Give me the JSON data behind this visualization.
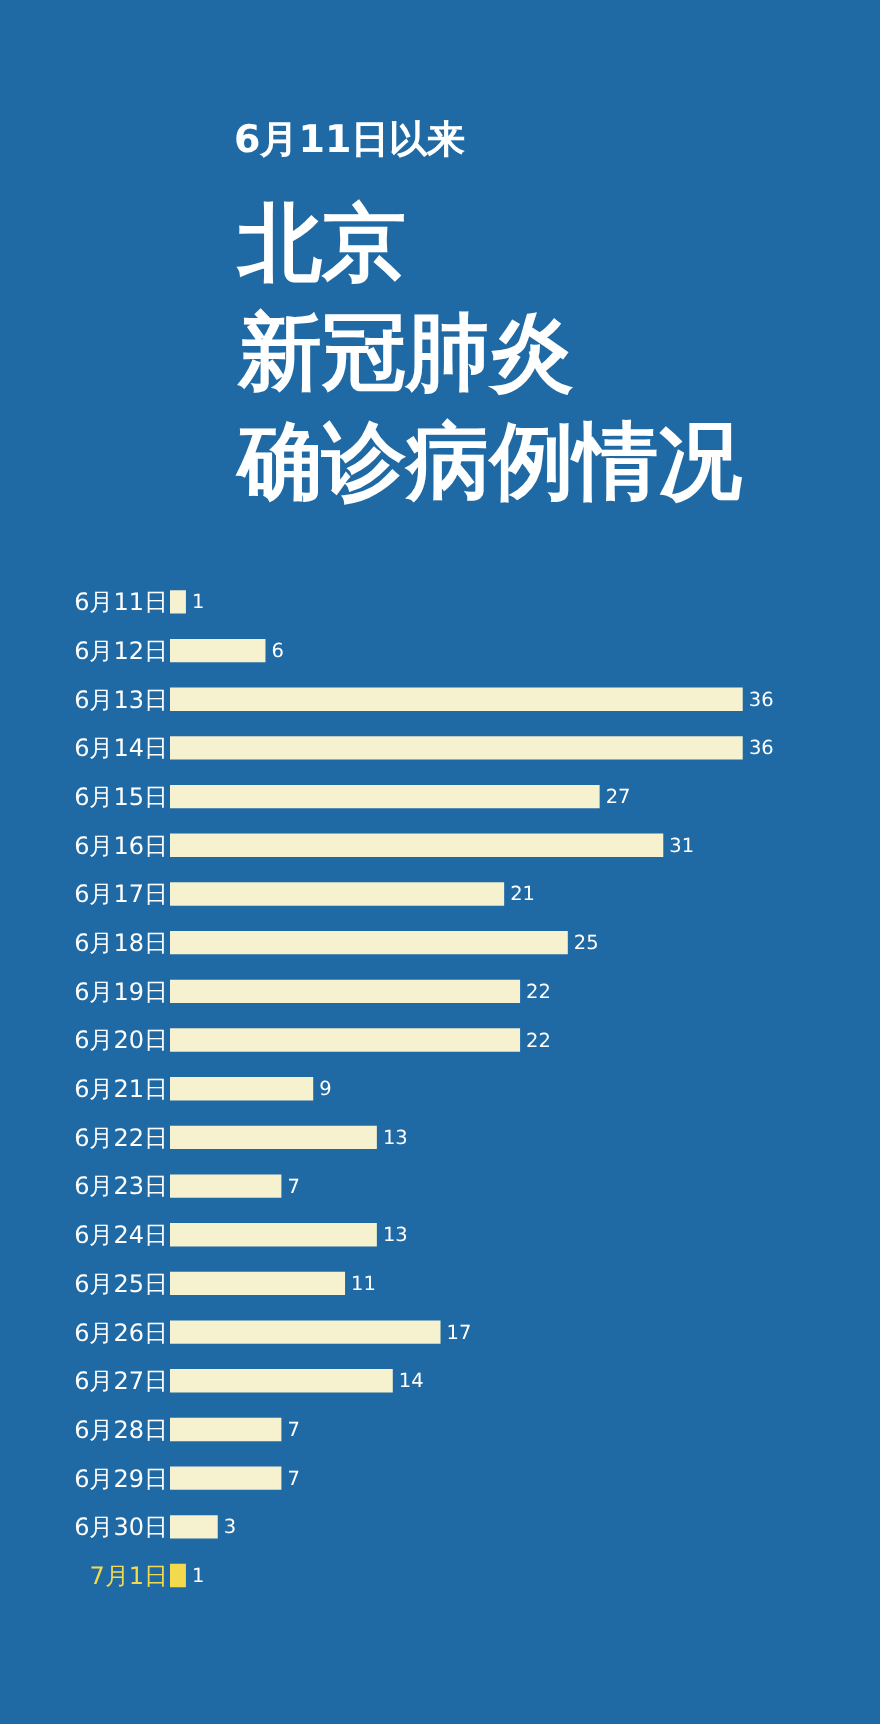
{
  "chart_data": {
    "type": "bar",
    "orientation": "horizontal",
    "subtitle": "6月11日以来",
    "title": "北京新冠肺炎确诊病例情况",
    "categories": [
      "6月11日",
      "6月12日",
      "6月13日",
      "6月14日",
      "6月15日",
      "6月16日",
      "6月17日",
      "6月18日",
      "6月19日",
      "6月20日",
      "6月21日",
      "6月22日",
      "6月23日",
      "6月24日",
      "6月25日",
      "6月26日",
      "6月27日",
      "6月28日",
      "6月29日",
      "6月30日",
      "7月1日"
    ],
    "values": [
      1,
      6,
      36,
      36,
      27,
      31,
      21,
      25,
      22,
      22,
      9,
      13,
      7,
      13,
      11,
      17,
      14,
      7,
      7,
      3,
      1
    ],
    "colors": [
      "#f6f1cf",
      "#f6f1cf",
      "#f6f1cf",
      "#f6f1cf",
      "#f6f1cf",
      "#f6f1cf",
      "#f6f1cf",
      "#f6f1cf",
      "#f6f1cf",
      "#f6f1cf",
      "#f6f1cf",
      "#f6f1cf",
      "#f6f1cf",
      "#f6f1cf",
      "#f6f1cf",
      "#f6f1cf",
      "#f6f1cf",
      "#f6f1cf",
      "#f6f1cf",
      "#f6f1cf",
      "#f2d94e"
    ],
    "data_labels": true
  }
}
